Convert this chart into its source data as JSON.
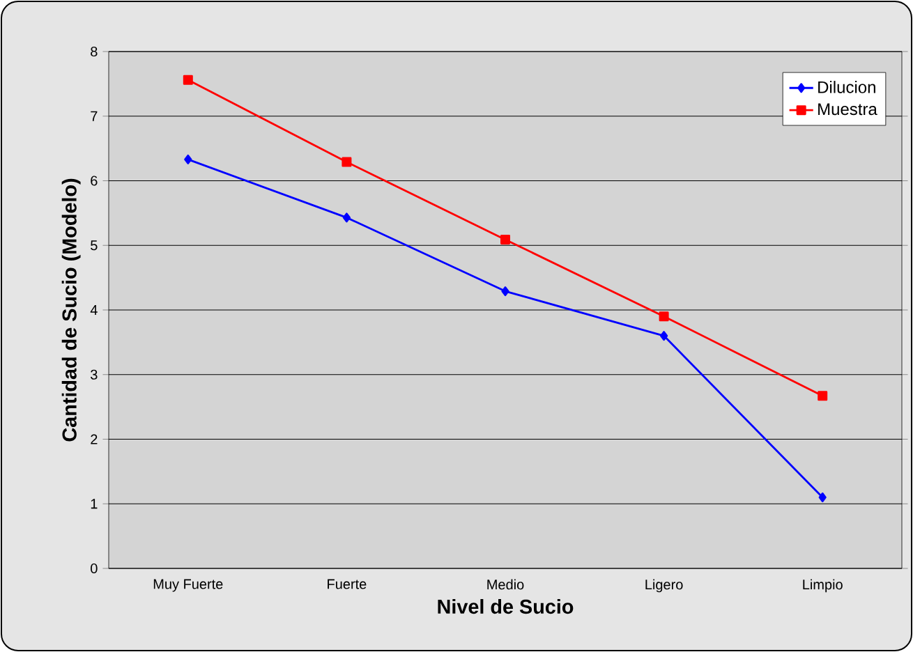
{
  "chart_data": {
    "type": "line",
    "xlabel": "Nivel de Sucio",
    "ylabel": "Cantidad de Sucio (Modelo)",
    "categories": [
      "Muy Fuerte",
      "Fuerte",
      "Medio",
      "Ligero",
      "Limpio"
    ],
    "series": [
      {
        "name": "Dilucion",
        "color": "#0000ff",
        "marker": "diamond",
        "values": [
          6.33,
          5.43,
          4.29,
          3.6,
          1.1
        ]
      },
      {
        "name": "Muestra",
        "color": "#ff0000",
        "marker": "square",
        "values": [
          7.56,
          6.29,
          5.09,
          3.9,
          2.67
        ]
      }
    ],
    "ylim": [
      0,
      8
    ],
    "yticks": [
      0,
      1,
      2,
      3,
      4,
      5,
      6,
      7,
      8
    ],
    "grid": "y",
    "legend": "top right"
  }
}
